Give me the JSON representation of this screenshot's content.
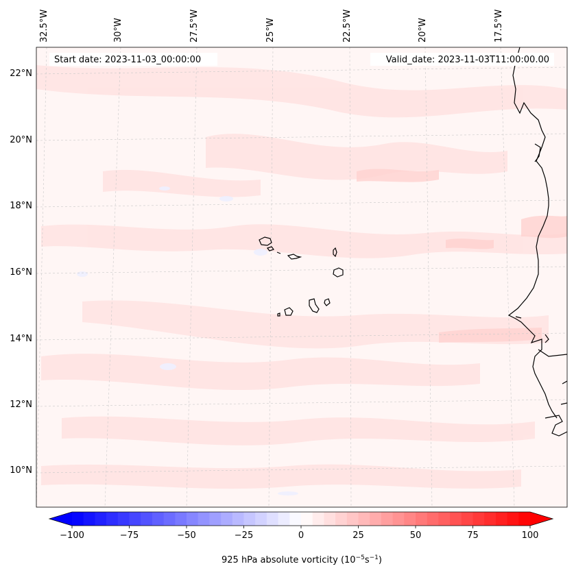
{
  "map": {
    "start_date": "Start date: 2023-11-03_00:00:00",
    "valid_date": "Valid_date: 2023-11-03T11:00:00.00",
    "lon_labels": [
      "32.5°W",
      "30°W",
      "27.5°W",
      "25°W",
      "22.5°W",
      "20°W",
      "17.5°W"
    ],
    "lat_labels": [
      "22°N",
      "20°N",
      "18°N",
      "16°N",
      "14°N",
      "12°N",
      "10°N"
    ]
  },
  "colorbar": {
    "ticks": [
      "−100",
      "−75",
      "−50",
      "−25",
      "0",
      "25",
      "50",
      "75",
      "100"
    ],
    "tick_values": [
      -100,
      -75,
      -50,
      -25,
      0,
      25,
      50,
      75,
      100
    ],
    "min": -100,
    "max": 100,
    "levels": 40,
    "label_prefix": "925 hPa absolute vorticity (10",
    "label_exp1": "−5",
    "label_mid": "s",
    "label_exp2": "−1",
    "label_suffix": ")"
  },
  "colors": {
    "negative": "#0000ff",
    "positive": "#ff0000",
    "background_field": "#fff6f5",
    "coast": "#000000"
  }
}
